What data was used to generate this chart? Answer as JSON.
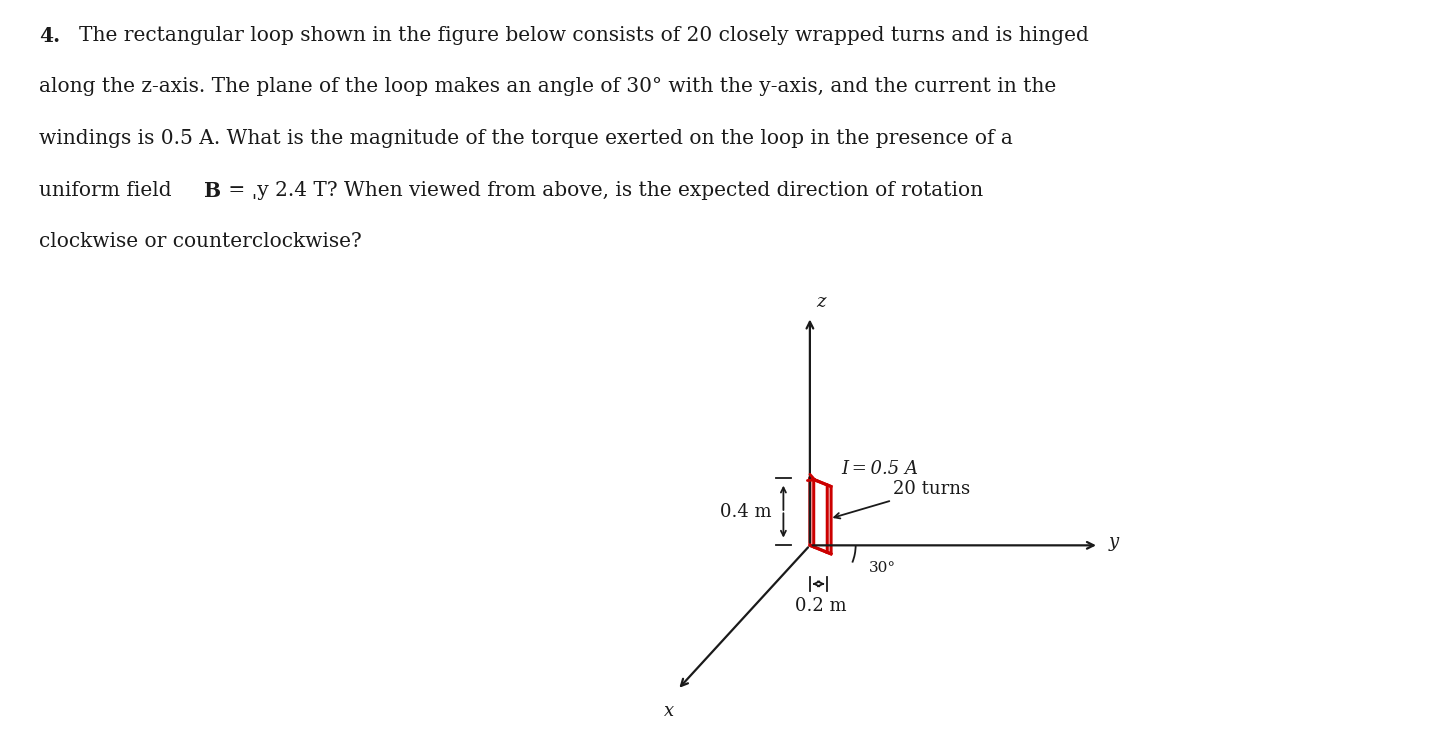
{
  "bg_color": "#ffffff",
  "text_color": "#1a1a1a",
  "loop_color": "#cc0000",
  "axis_color": "#1a1a1a",
  "dim_color": "#1a1a1a",
  "line1": "The rectangular loop shown in the figure below consists of 20 closely wrapped turns and is hinged",
  "line2": "along the z-axis. The plane of the loop makes an angle of 30° with the y-axis, and the current in the",
  "line3": "windings is 0.5 A. What is the magnitude of the torque exerted on the loop in the presence of a",
  "line4a": "uniform field    ",
  "line4b": "B",
  "line4c": " = ˌy 2.4 T? When viewed from above, is the expected direction of rotation",
  "line5": "clockwise or counterclockwise?",
  "current_label": "I = 0.5 A",
  "turns_label": "20 turns",
  "width_label": "0.2 m",
  "height_label": "0.4 m",
  "angle_label": "30°",
  "fontsize_text": 14.5,
  "fontsize_diagram": 13
}
